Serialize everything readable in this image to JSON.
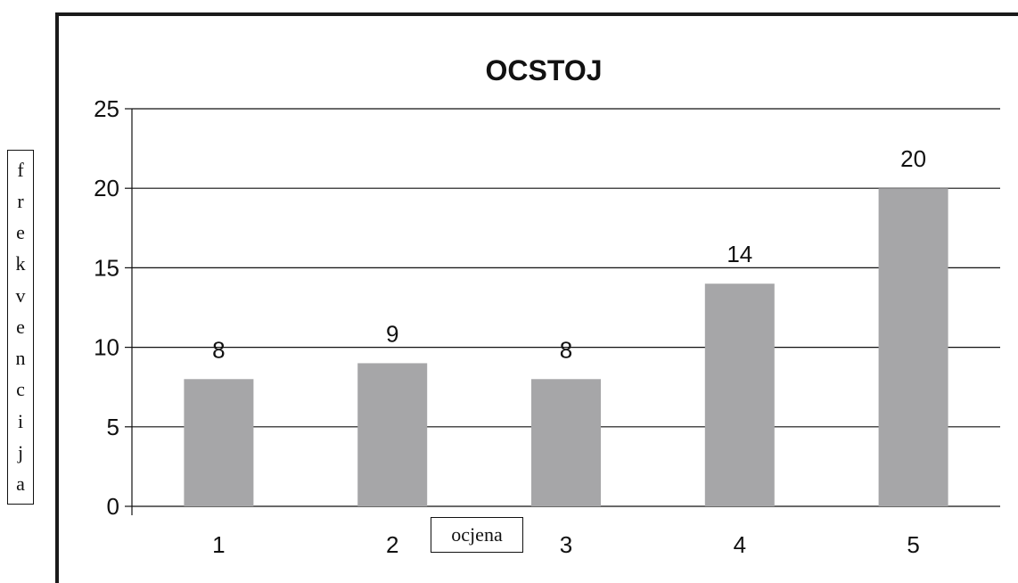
{
  "chart_data": {
    "type": "bar",
    "title": "OCSTOJ",
    "xlabel": "ocjena",
    "ylabel": "frekvencija",
    "categories": [
      "1",
      "2",
      "3",
      "4",
      "5"
    ],
    "values": [
      8,
      9,
      8,
      14,
      20
    ],
    "ylim": [
      0,
      25
    ],
    "yticks": [
      0,
      5,
      10,
      15,
      20,
      25
    ],
    "grid": true,
    "legend": "none",
    "bar_color": "#a6a6a8"
  }
}
